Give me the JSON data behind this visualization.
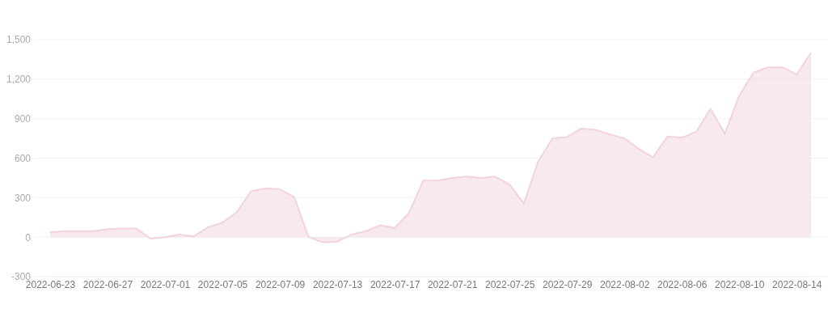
{
  "chart_data": {
    "type": "area",
    "x": [
      "2022-06-23",
      "2022-06-24",
      "2022-06-25",
      "2022-06-26",
      "2022-06-27",
      "2022-06-28",
      "2022-06-29",
      "2022-06-30",
      "2022-07-01",
      "2022-07-02",
      "2022-07-03",
      "2022-07-04",
      "2022-07-05",
      "2022-07-06",
      "2022-07-07",
      "2022-07-08",
      "2022-07-09",
      "2022-07-10",
      "2022-07-11",
      "2022-07-12",
      "2022-07-13",
      "2022-07-14",
      "2022-07-15",
      "2022-07-16",
      "2022-07-17",
      "2022-07-18",
      "2022-07-19",
      "2022-07-20",
      "2022-07-21",
      "2022-07-22",
      "2022-07-23",
      "2022-07-24",
      "2022-07-25",
      "2022-07-26",
      "2022-07-27",
      "2022-07-28",
      "2022-07-29",
      "2022-07-30",
      "2022-07-31",
      "2022-08-01",
      "2022-08-02",
      "2022-08-03",
      "2022-08-04",
      "2022-08-05",
      "2022-08-06",
      "2022-08-07",
      "2022-08-08",
      "2022-08-09",
      "2022-08-10",
      "2022-08-11",
      "2022-08-12",
      "2022-08-13",
      "2022-08-14",
      "2022-08-15"
    ],
    "series": [
      {
        "color": "#f2d3de",
        "values": [
          37,
          45,
          45,
          45,
          60,
          65,
          65,
          -12,
          0,
          20,
          5,
          75,
          110,
          190,
          350,
          370,
          365,
          305,
          0,
          -40,
          -35,
          20,
          45,
          90,
          70,
          185,
          430,
          430,
          450,
          460,
          450,
          460,
          400,
          255,
          575,
          750,
          760,
          825,
          815,
          780,
          750,
          670,
          605,
          765,
          755,
          800,
          975,
          785,
          1075,
          1250,
          1290,
          1290,
          1235,
          1400
        ]
      }
    ],
    "xlim": [
      "2022-06-23",
      "2022-08-15"
    ],
    "xticks": [
      "2022-06-23",
      "2022-06-27",
      "2022-07-01",
      "2022-07-05",
      "2022-07-09",
      "2022-07-13",
      "2022-07-17",
      "2022-07-21",
      "2022-07-25",
      "2022-07-29",
      "2022-08-02",
      "2022-08-06",
      "2022-08-10",
      "2022-08-14"
    ],
    "ylim": [
      -300,
      1500
    ],
    "yticks": [
      {
        "value": -300,
        "label": "-300"
      },
      {
        "value": 0,
        "label": "0"
      },
      {
        "value": 300,
        "label": "300"
      },
      {
        "value": 600,
        "label": "600"
      },
      {
        "value": 900,
        "label": "900"
      },
      {
        "value": 1200,
        "label": "1,200"
      },
      {
        "value": 1500,
        "label": "1,500"
      }
    ],
    "grid": "y"
  }
}
